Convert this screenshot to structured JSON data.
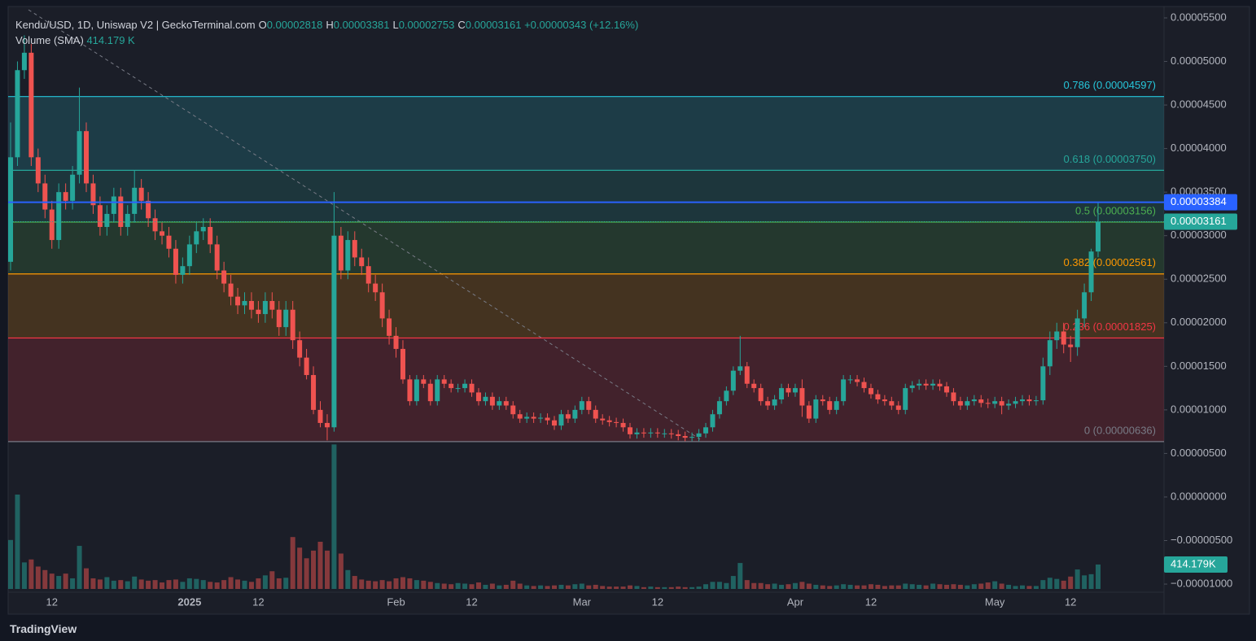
{
  "chart_data": {
    "type": "candlestick",
    "title": "Kendu/USD, 1D, Uniswap V2 | GeckoTerminal.com",
    "ohlc_legend": [
      {
        "key": "O",
        "value": "0.00002818"
      },
      {
        "key": "H",
        "value": "0.00003381"
      },
      {
        "key": "L",
        "value": "0.00002753"
      },
      {
        "key": "C",
        "value": "0.00003161"
      }
    ],
    "change": "+0.00000343 (+12.16%)",
    "up_color": "#26a69a",
    "down_color": "#ef5350",
    "categories": [
      null,
      null,
      null,
      null,
      null,
      null,
      "12",
      null,
      null,
      null,
      null,
      null,
      null,
      null,
      null,
      null,
      null,
      null,
      null,
      null,
      null,
      null,
      null,
      null,
      null,
      null,
      "2025",
      null,
      null,
      null,
      null,
      null,
      null,
      null,
      null,
      null,
      "12",
      null,
      null,
      null,
      null,
      null,
      null,
      null,
      null,
      null,
      null,
      null,
      null,
      null,
      null,
      null,
      null,
      null,
      null,
      null,
      "Feb",
      null,
      null,
      null,
      null,
      null,
      null,
      null,
      null,
      null,
      null,
      "12",
      null,
      null,
      null,
      null,
      null,
      null,
      null,
      null,
      null,
      null,
      null,
      null,
      null,
      null,
      null,
      "Mar",
      null,
      null,
      null,
      null,
      null,
      null,
      null,
      null,
      null,
      null,
      "12",
      null,
      null,
      null,
      null,
      null,
      null,
      null,
      null,
      null,
      null,
      null,
      null,
      null,
      null,
      null,
      null,
      null,
      null,
      null,
      "Apr",
      null,
      null,
      null,
      null,
      null,
      null,
      null,
      null,
      null,
      null,
      "12",
      null,
      null,
      null,
      null,
      null,
      null,
      null,
      null,
      null,
      null,
      null,
      null,
      null,
      null,
      null,
      null,
      null,
      "May",
      null,
      null,
      null,
      null,
      null,
      null,
      null,
      null,
      null,
      null,
      "12",
      null,
      null,
      null,
      null
    ],
    "open": [
      2.7e-05,
      3.9e-05,
      4.9e-05,
      5.1e-05,
      3.9e-05,
      3.6e-05,
      3.3e-05,
      2.95e-05,
      3.5e-05,
      3.4e-05,
      3.7e-05,
      4.2e-05,
      3.6e-05,
      3.35e-05,
      3.1e-05,
      3.25e-05,
      3.45e-05,
      3.1e-05,
      3.25e-05,
      3.55e-05,
      3.4e-05,
      3.2e-05,
      3.05e-05,
      3e-05,
      2.85e-05,
      2.55e-05,
      2.65e-05,
      2.9e-05,
      3.05e-05,
      3.1e-05,
      2.9e-05,
      2.6e-05,
      2.45e-05,
      2.3e-05,
      2.2e-05,
      2.25e-05,
      2.15e-05,
      2.1e-05,
      2.25e-05,
      2.15e-05,
      1.95e-05,
      2.15e-05,
      1.8e-05,
      1.6e-05,
      1.4e-05,
      1e-05,
      8.5e-06,
      8e-06,
      3e-05,
      2.6e-05,
      2.95e-05,
      2.75e-05,
      2.65e-05,
      2.45e-05,
      2.35e-05,
      2.05e-05,
      1.85e-05,
      1.7e-05,
      1.35e-05,
      1.1e-05,
      1.35e-05,
      1.3e-05,
      1.1e-05,
      1.35e-05,
      1.3e-05,
      1.25e-05,
      1.25e-05,
      1.3e-05,
      1.2e-05,
      1.1e-05,
      1.15e-05,
      1.05e-05,
      1.1e-05,
      1.05e-05,
      9.5e-06,
      9e-06,
      9.2e-06,
      9e-06,
      9.1e-06,
      8.8e-06,
      8.2e-06,
      9.5e-06,
      9e-06,
      1e-05,
      1.1e-05,
      1e-05,
      9e-06,
      8.8e-06,
      8.6e-06,
      8.5e-06,
      8e-06,
      7.2e-06,
      7.4e-06,
      7.3e-06,
      7.4e-06,
      7.3e-06,
      7.3e-06,
      7.2e-06,
      7e-06,
      6.8e-06,
      6.9e-06,
      7.3e-06,
      8e-06,
      9.5e-06,
      1.1e-05,
      1.22e-05,
      1.45e-05,
      1.5e-05,
      1.3e-05,
      1.25e-05,
      1.1e-05,
      1.05e-05,
      1.12e-05,
      1.25e-05,
      1.2e-05,
      1.25e-05,
      1.05e-05,
      9e-06,
      1.12e-05,
      1.1e-05,
      1e-05,
      1.1e-05,
      1.35e-05,
      1.35e-05,
      1.32e-05,
      1.25e-05,
      1.18e-05,
      1.12e-05,
      1.1e-05,
      1.05e-05,
      1e-05,
      1.25e-05,
      1.28e-05,
      1.3e-05,
      1.28e-05,
      1.3e-05,
      1.27e-05,
      1.2e-05,
      1.1e-05,
      1.05e-05,
      1.1e-05,
      1.12e-05,
      1.08e-05,
      1.07e-05,
      1.1e-05,
      1.05e-05,
      1.07e-05,
      1.1e-05,
      1.12e-05,
      1.1e-05,
      1.11e-05,
      1.5e-05,
      1.8e-05,
      1.9e-05,
      1.75e-05,
      1.72e-05,
      2.05e-05,
      2.35e-05,
      2.818e-05
    ],
    "high": [
      4.3e-05,
      5e-05,
      5.3e-05,
      5.2e-05,
      4e-05,
      3.7e-05,
      3.4e-05,
      3.6e-05,
      3.6e-05,
      3.8e-05,
      4.7e-05,
      4.3e-05,
      3.7e-05,
      3.45e-05,
      3.35e-05,
      3.55e-05,
      3.55e-05,
      3.35e-05,
      3.75e-05,
      3.65e-05,
      3.5e-05,
      3.3e-05,
      3.15e-05,
      3.1e-05,
      2.95e-05,
      2.75e-05,
      3e-05,
      3.15e-05,
      3.2e-05,
      3.2e-05,
      3e-05,
      2.7e-05,
      2.55e-05,
      2.4e-05,
      2.35e-05,
      2.35e-05,
      2.25e-05,
      2.35e-05,
      2.35e-05,
      2.25e-05,
      2.25e-05,
      2.25e-05,
      1.9e-05,
      1.7e-05,
      1.5e-05,
      1.1e-05,
      9.5e-06,
      3.5e-05,
      3.1e-05,
      3.05e-05,
      3.05e-05,
      2.85e-05,
      2.75e-05,
      2.55e-05,
      2.45e-05,
      2.15e-05,
      1.95e-05,
      1.8e-05,
      1.4e-05,
      1.4e-05,
      1.4e-05,
      1.35e-05,
      1.4e-05,
      1.4e-05,
      1.35e-05,
      1.3e-05,
      1.35e-05,
      1.35e-05,
      1.25e-05,
      1.2e-05,
      1.2e-05,
      1.15e-05,
      1.15e-05,
      1.1e-05,
      1e-05,
      9.7e-06,
      9.7e-06,
      9.6e-06,
      9.6e-06,
      9.3e-06,
      1e-05,
      1e-05,
      1.05e-05,
      1.15e-05,
      1.15e-05,
      1.05e-05,
      9.5e-06,
      9.3e-06,
      9.1e-06,
      9e-06,
      8.5e-06,
      7.9e-06,
      7.9e-06,
      7.9e-06,
      7.9e-06,
      7.8e-06,
      7.8e-06,
      7.7e-06,
      7.5e-06,
      7.4e-06,
      7.8e-06,
      8.5e-06,
      1e-05,
      1.15e-05,
      1.27e-05,
      1.5e-05,
      1.85e-05,
      1.55e-05,
      1.35e-05,
      1.3e-05,
      1.15e-05,
      1.17e-05,
      1.3e-05,
      1.3e-05,
      1.3e-05,
      1.35e-05,
      1.1e-05,
      1.17e-05,
      1.17e-05,
      1.15e-05,
      1.15e-05,
      1.4e-05,
      1.4e-05,
      1.4e-05,
      1.37e-05,
      1.3e-05,
      1.23e-05,
      1.17e-05,
      1.15e-05,
      1.1e-05,
      1.3e-05,
      1.33e-05,
      1.35e-05,
      1.35e-05,
      1.35e-05,
      1.35e-05,
      1.32e-05,
      1.25e-05,
      1.15e-05,
      1.15e-05,
      1.17e-05,
      1.17e-05,
      1.13e-05,
      1.15e-05,
      1.15e-05,
      1.12e-05,
      1.15e-05,
      1.17e-05,
      1.17e-05,
      1.16e-05,
      1.6e-05,
      1.9e-05,
      2e-05,
      2e-05,
      1.85e-05,
      2.15e-05,
      2.45e-05,
      2.85e-05,
      3.381e-05
    ],
    "low": [
      2.6e-05,
      3.8e-05,
      4.8e-05,
      3.8e-05,
      3.5e-05,
      3.2e-05,
      2.85e-05,
      2.85e-05,
      3.3e-05,
      3.3e-05,
      3.6e-05,
      3.5e-05,
      3.25e-05,
      3e-05,
      3e-05,
      3.15e-05,
      3e-05,
      3e-05,
      3.15e-05,
      3.3e-05,
      3.1e-05,
      2.95e-05,
      2.9e-05,
      2.75e-05,
      2.45e-05,
      2.45e-05,
      2.55e-05,
      2.8e-05,
      2.95e-05,
      2.8e-05,
      2.5e-05,
      2.35e-05,
      2.2e-05,
      2.1e-05,
      2.1e-05,
      2.05e-05,
      2e-05,
      2e-05,
      2.05e-05,
      1.85e-05,
      1.85e-05,
      1.7e-05,
      1.5e-05,
      1.35e-05,
      9.5e-06,
      8e-06,
      6.5e-06,
      7.5e-06,
      2.5e-05,
      2.5e-05,
      2.65e-05,
      2.55e-05,
      2.35e-05,
      2.25e-05,
      1.95e-05,
      1.75e-05,
      1.6e-05,
      1.3e-05,
      1.05e-05,
      1.05e-05,
      1.25e-05,
      1.05e-05,
      1.05e-05,
      1.25e-05,
      1.2e-05,
      1.2e-05,
      1.2e-05,
      1.15e-05,
      1.05e-05,
      1.05e-05,
      1e-05,
      1e-05,
      1e-05,
      9e-06,
      8.5e-06,
      8.5e-06,
      8.5e-06,
      8.5e-06,
      8.3e-06,
      7.7e-06,
      7.7e-06,
      8.5e-06,
      8.5e-06,
      9.5e-06,
      9.5e-06,
      8.5e-06,
      8.3e-06,
      8.1e-06,
      8e-06,
      7.5e-06,
      6.7e-06,
      6.7e-06,
      6.8e-06,
      6.8e-06,
      6.8e-06,
      6.8e-06,
      6.7e-06,
      6.5e-06,
      6.4e-06,
      6.4e-06,
      6.4e-06,
      6.8e-06,
      7.5e-06,
      9e-06,
      1.05e-05,
      1.17e-05,
      1.4e-05,
      1.25e-05,
      1.2e-05,
      1.05e-05,
      1e-05,
      1e-05,
      1.07e-05,
      1.15e-05,
      1.15e-05,
      9.2e-06,
      8.5e-06,
      8.5e-06,
      1.05e-05,
      9.5e-06,
      9.5e-06,
      1.05e-05,
      1.3e-05,
      1.27e-05,
      1.2e-05,
      1.13e-05,
      1.07e-05,
      1.05e-05,
      1e-05,
      9.5e-06,
      9.5e-06,
      1.2e-05,
      1.23e-05,
      1.23e-05,
      1.23e-05,
      1.22e-05,
      1.15e-05,
      1.05e-05,
      1e-05,
      1e-05,
      1.05e-05,
      1.03e-05,
      1.02e-05,
      1.02e-05,
      9.5e-06,
      1e-05,
      1.02e-05,
      1.05e-05,
      1.05e-05,
      1.05e-05,
      1.06e-05,
      1.4e-05,
      1.7e-05,
      1.65e-05,
      1.55e-05,
      1.62e-05,
      1.95e-05,
      2.25e-05,
      2.753e-05
    ],
    "close": [
      3.9e-05,
      4.9e-05,
      5.1e-05,
      3.9e-05,
      3.6e-05,
      3.3e-05,
      2.95e-05,
      3.5e-05,
      3.4e-05,
      3.7e-05,
      4.2e-05,
      3.6e-05,
      3.35e-05,
      3.1e-05,
      3.25e-05,
      3.45e-05,
      3.1e-05,
      3.25e-05,
      3.55e-05,
      3.4e-05,
      3.2e-05,
      3.05e-05,
      3e-05,
      2.85e-05,
      2.55e-05,
      2.65e-05,
      2.9e-05,
      3.05e-05,
      3.1e-05,
      2.9e-05,
      2.6e-05,
      2.45e-05,
      2.3e-05,
      2.2e-05,
      2.25e-05,
      2.15e-05,
      2.1e-05,
      2.25e-05,
      2.15e-05,
      1.95e-05,
      2.15e-05,
      1.8e-05,
      1.6e-05,
      1.4e-05,
      1e-05,
      8.5e-06,
      8e-06,
      3e-05,
      2.6e-05,
      2.95e-05,
      2.75e-05,
      2.65e-05,
      2.45e-05,
      2.35e-05,
      2.05e-05,
      1.85e-05,
      1.7e-05,
      1.35e-05,
      1.1e-05,
      1.35e-05,
      1.3e-05,
      1.1e-05,
      1.35e-05,
      1.3e-05,
      1.25e-05,
      1.25e-05,
      1.3e-05,
      1.2e-05,
      1.1e-05,
      1.15e-05,
      1.05e-05,
      1.1e-05,
      1.05e-05,
      9.5e-06,
      9e-06,
      9.2e-06,
      9e-06,
      9.1e-06,
      8.8e-06,
      8.2e-06,
      9.5e-06,
      9e-06,
      1e-05,
      1.1e-05,
      1e-05,
      9e-06,
      8.8e-06,
      8.6e-06,
      8.5e-06,
      8e-06,
      7.2e-06,
      7.4e-06,
      7.3e-06,
      7.4e-06,
      7.3e-06,
      7.3e-06,
      7.2e-06,
      7e-06,
      6.8e-06,
      6.9e-06,
      7.3e-06,
      8e-06,
      9.5e-06,
      1.1e-05,
      1.22e-05,
      1.45e-05,
      1.5e-05,
      1.3e-05,
      1.25e-05,
      1.1e-05,
      1.05e-05,
      1.12e-05,
      1.25e-05,
      1.2e-05,
      1.25e-05,
      1.05e-05,
      9e-06,
      1.12e-05,
      1.1e-05,
      1e-05,
      1.1e-05,
      1.35e-05,
      1.35e-05,
      1.32e-05,
      1.25e-05,
      1.18e-05,
      1.12e-05,
      1.1e-05,
      1.05e-05,
      1e-05,
      1.25e-05,
      1.28e-05,
      1.3e-05,
      1.28e-05,
      1.3e-05,
      1.27e-05,
      1.2e-05,
      1.1e-05,
      1.05e-05,
      1.1e-05,
      1.12e-05,
      1.08e-05,
      1.07e-05,
      1.1e-05,
      1.05e-05,
      1.07e-05,
      1.1e-05,
      1.12e-05,
      1.1e-05,
      1.11e-05,
      1.5e-05,
      1.8e-05,
      1.9e-05,
      1.75e-05,
      1.72e-05,
      2.05e-05,
      2.35e-05,
      2.818e-05,
      3.161e-05
    ],
    "volume": {
      "name": "Volume (SMA)",
      "legend_value": "414.179 K",
      "tag_label": "414.179K",
      "values": [
        830,
        1600,
        450,
        500,
        380,
        320,
        260,
        220,
        260,
        180,
        730,
        350,
        180,
        160,
        200,
        140,
        150,
        130,
        210,
        160,
        140,
        150,
        110,
        150,
        160,
        120,
        180,
        170,
        150,
        120,
        110,
        150,
        200,
        160,
        140,
        120,
        180,
        230,
        300,
        180,
        190,
        880,
        700,
        520,
        650,
        800,
        650,
        2450,
        600,
        320,
        220,
        160,
        140,
        130,
        150,
        130,
        180,
        200,
        180,
        150,
        140,
        120,
        100,
        90,
        80,
        100,
        90,
        80,
        110,
        70,
        90,
        60,
        70,
        140,
        90,
        60,
        50,
        60,
        50,
        60,
        70,
        60,
        80,
        90,
        60,
        70,
        50,
        40,
        40,
        40,
        60,
        50,
        30,
        40,
        30,
        30,
        30,
        40,
        30,
        30,
        40,
        80,
        120,
        120,
        100,
        220,
        440,
        150,
        100,
        100,
        80,
        90,
        70,
        80,
        100,
        120,
        90,
        70,
        60,
        50,
        60,
        80,
        70,
        60,
        60,
        80,
        70,
        50,
        60,
        60,
        90,
        80,
        70,
        60,
        90,
        80,
        70,
        80,
        70,
        60,
        80,
        90,
        110,
        130,
        90,
        70,
        50,
        60,
        50,
        50,
        150,
        190,
        170,
        140,
        210,
        330,
        230,
        250,
        414.179
      ]
    },
    "ylim": [
      -1.093e-05,
      5.612e-05
    ],
    "yticks": [
      {
        "value": 5.5e-05,
        "label": "0.00005500"
      },
      {
        "value": 5e-05,
        "label": "0.00005000"
      },
      {
        "value": 4.5e-05,
        "label": "0.00004500"
      },
      {
        "value": 4e-05,
        "label": "0.00004000"
      },
      {
        "value": 3.5e-05,
        "label": "0.00003500"
      },
      {
        "value": 3e-05,
        "label": "0.00003000"
      },
      {
        "value": 2.5e-05,
        "label": "0.00002500"
      },
      {
        "value": 2e-05,
        "label": "0.00002000"
      },
      {
        "value": 1.5e-05,
        "label": "0.00001500"
      },
      {
        "value": 1e-05,
        "label": "0.00001000"
      },
      {
        "value": 5e-06,
        "label": "0.00000500"
      },
      {
        "value": 0,
        "label": "0.00000000"
      },
      {
        "value": -5e-06,
        "label": "−0.00000500"
      },
      {
        "value": -1e-05,
        "label": "−0.00001000"
      }
    ],
    "fib_levels": [
      {
        "value": 4.597e-05,
        "label": "0.786 (0.00004597)",
        "color": "#26c6da"
      },
      {
        "value": 3.75e-05,
        "label": "0.618 (0.00003750)",
        "color": "#26a69a"
      },
      {
        "value": 3.156e-05,
        "label": "0.5 (0.00003156)",
        "color": "#4caf50"
      },
      {
        "value": 2.561e-05,
        "label": "0.382 (0.00002561)",
        "color": "#ff9800"
      },
      {
        "value": 1.825e-05,
        "label": "0.236 (0.00001825)",
        "color": "#f23645"
      },
      {
        "value": 6.36e-06,
        "label": "0 (0.00000636)",
        "color": "#787b86"
      }
    ],
    "hline": {
      "value": 3.384e-05,
      "label": "0.00003384",
      "color": "#2962ff"
    },
    "last_price_label": "0.00003161",
    "footer": "TradingView"
  }
}
